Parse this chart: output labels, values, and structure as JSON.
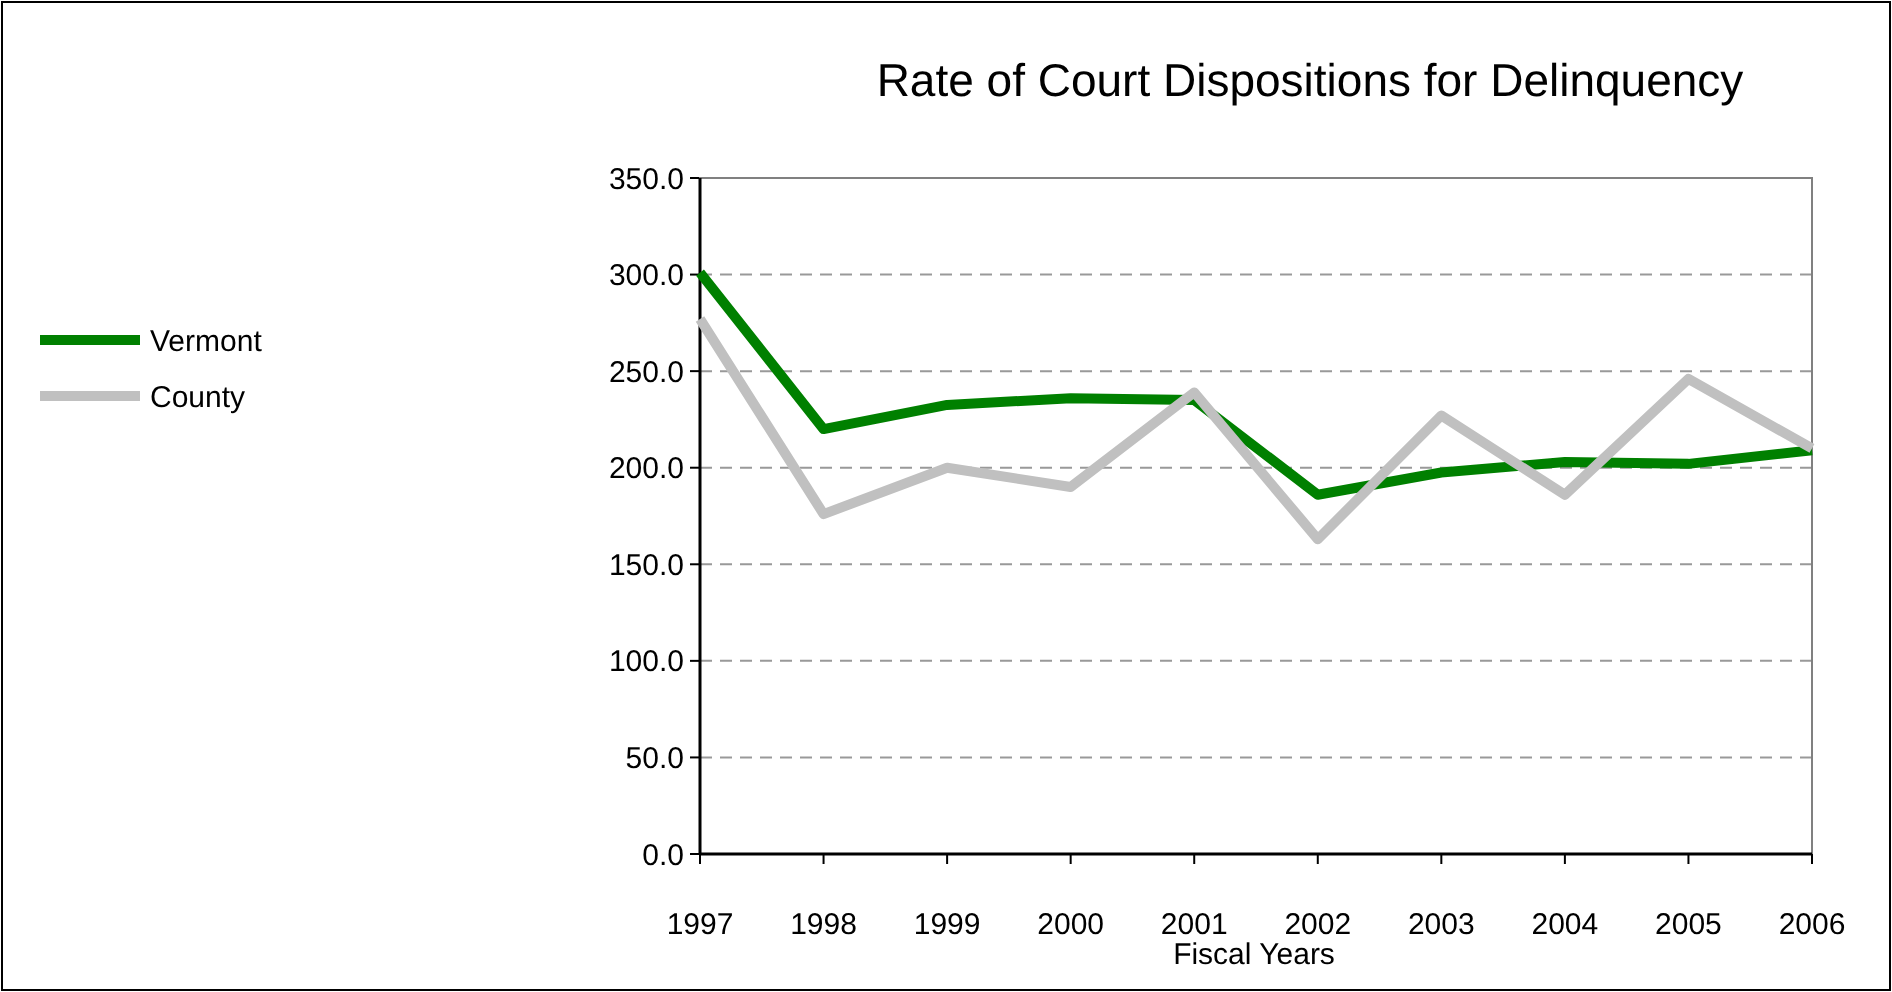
{
  "chart_data": {
    "type": "line",
    "title": "Rate of Court Dispositions for Delinquency",
    "xlabel": "Fiscal Years",
    "categories": [
      "1997",
      "1998",
      "1999",
      "2000",
      "2001",
      "2002",
      "2003",
      "2004",
      "2005",
      "2006"
    ],
    "series": [
      {
        "name": "Vermont",
        "color": "#008000",
        "values": [
          301,
          220,
          232.5,
          236,
          235,
          186,
          197.5,
          203,
          202,
          209
        ]
      },
      {
        "name": "County",
        "color": "#c0c0c0",
        "values": [
          277,
          176,
          200,
          190,
          239,
          163,
          227,
          186,
          246,
          210
        ]
      }
    ],
    "ylim": [
      0,
      350
    ],
    "yticks": [
      {
        "value": 0,
        "label": "0.0"
      },
      {
        "value": 50,
        "label": "50.0"
      },
      {
        "value": 100,
        "label": "100.0"
      },
      {
        "value": 150,
        "label": "150.0"
      },
      {
        "value": 200,
        "label": "200.0"
      },
      {
        "value": 250,
        "label": "250.0"
      },
      {
        "value": 300,
        "label": "300.0"
      },
      {
        "value": 350,
        "label": "350.0"
      }
    ],
    "grid": "y",
    "legend": "left",
    "marker": "none",
    "line_style": "solid"
  }
}
